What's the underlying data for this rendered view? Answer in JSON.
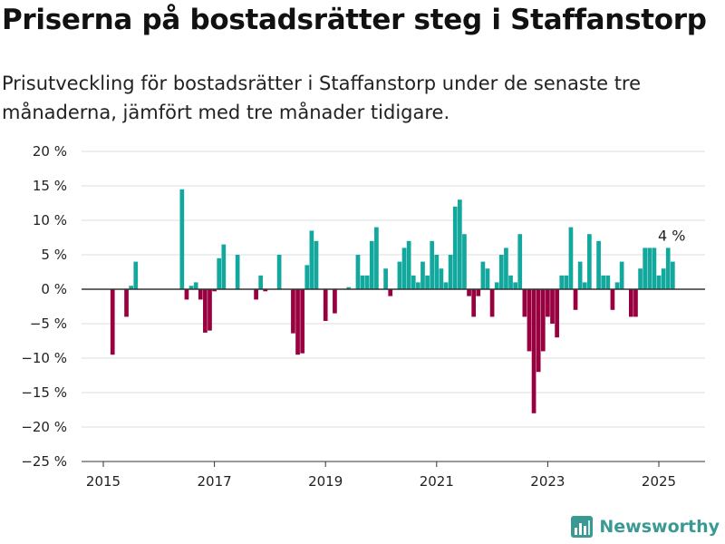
{
  "title": "Priserna på bostadsrätter steg i Staffanstorp",
  "subtitle": "Prisutveckling för bostadsrätter i Staffanstorp under de senaste tre månaderna, jämfört med tre månader tidigare.",
  "brand": {
    "name": "Newsworthy"
  },
  "colors": {
    "positive": "#13a89e",
    "negative": "#990040",
    "grid": "#dddddd",
    "axis": "#333333",
    "brand": "#3a9a93"
  },
  "chart_data": {
    "type": "bar",
    "title": "",
    "xlabel": "",
    "ylabel": "",
    "ylim": [
      -25,
      20
    ],
    "y_ticks": [
      20,
      15,
      10,
      5,
      0,
      -5,
      -10,
      -15,
      -20,
      -25
    ],
    "y_tick_labels": [
      "20 %",
      "15 %",
      "10 %",
      "5 %",
      "0 %",
      "−5 %",
      "−10 %",
      "−15 %",
      "−20 %",
      "−25 %"
    ],
    "x_ticks": [
      2015,
      2017,
      2019,
      2021,
      2023,
      2025
    ],
    "x_tick_labels": [
      "2015",
      "2017",
      "2019",
      "2021",
      "2023",
      "2025"
    ],
    "grid": true,
    "annotation": {
      "text": "4 %",
      "x": "2025-03",
      "value": 4
    },
    "dates": [
      "2015-01",
      "2015-02",
      "2015-03",
      "2015-04",
      "2015-05",
      "2015-06",
      "2015-07",
      "2015-08",
      "2015-09",
      "2015-10",
      "2015-11",
      "2015-12",
      "2016-01",
      "2016-02",
      "2016-03",
      "2016-04",
      "2016-05",
      "2016-06",
      "2016-07",
      "2016-08",
      "2016-09",
      "2016-10",
      "2016-11",
      "2016-12",
      "2017-01",
      "2017-02",
      "2017-03",
      "2017-04",
      "2017-05",
      "2017-06",
      "2017-07",
      "2017-08",
      "2017-09",
      "2017-10",
      "2017-11",
      "2017-12",
      "2018-01",
      "2018-02",
      "2018-03",
      "2018-04",
      "2018-05",
      "2018-06",
      "2018-07",
      "2018-08",
      "2018-09",
      "2018-10",
      "2018-11",
      "2018-12",
      "2019-01",
      "2019-02",
      "2019-03",
      "2019-04",
      "2019-05",
      "2019-06",
      "2019-07",
      "2019-08",
      "2019-09",
      "2019-10",
      "2019-11",
      "2019-12",
      "2020-01",
      "2020-02",
      "2020-03",
      "2020-04",
      "2020-05",
      "2020-06",
      "2020-07",
      "2020-08",
      "2020-09",
      "2020-10",
      "2020-11",
      "2020-12",
      "2021-01",
      "2021-02",
      "2021-03",
      "2021-04",
      "2021-05",
      "2021-06",
      "2021-07",
      "2021-08",
      "2021-09",
      "2021-10",
      "2021-11",
      "2021-12",
      "2022-01",
      "2022-02",
      "2022-03",
      "2022-04",
      "2022-05",
      "2022-06",
      "2022-07",
      "2022-08",
      "2022-09",
      "2022-10",
      "2022-11",
      "2022-12",
      "2023-01",
      "2023-02",
      "2023-03",
      "2023-04",
      "2023-05",
      "2023-06",
      "2023-07",
      "2023-08",
      "2023-09",
      "2023-10",
      "2023-11",
      "2023-12",
      "2024-01",
      "2024-02",
      "2024-03",
      "2024-04",
      "2024-05",
      "2024-06",
      "2024-07",
      "2024-08",
      "2024-09",
      "2024-10",
      "2024-11",
      "2024-12",
      "2025-01",
      "2025-02",
      "2025-03",
      "2025-04"
    ],
    "values": [
      null,
      null,
      -9.5,
      null,
      null,
      -4,
      0.5,
      4,
      null,
      null,
      null,
      null,
      null,
      null,
      null,
      null,
      null,
      14.5,
      -1.5,
      0.5,
      1,
      -1.5,
      -6.3,
      -6,
      -0.3,
      4.5,
      6.5,
      null,
      null,
      5,
      null,
      null,
      null,
      -1.5,
      2,
      -0.3,
      null,
      null,
      5,
      null,
      null,
      -6.4,
      -9.5,
      -9.3,
      3.5,
      8.5,
      7,
      null,
      -4.6,
      null,
      -3.5,
      null,
      null,
      0.3,
      null,
      5,
      2,
      2,
      7,
      9,
      null,
      3,
      -1,
      null,
      4,
      6,
      7,
      2,
      1,
      4,
      2,
      7,
      5,
      3,
      1,
      5,
      12,
      13,
      8,
      -1,
      -4,
      -1,
      4,
      3,
      -4,
      1,
      5,
      6,
      2,
      1,
      8,
      -4,
      -9,
      -18,
      -12,
      -9,
      -4,
      -5,
      -7,
      2,
      2,
      9,
      -3,
      4,
      1,
      8,
      null,
      7,
      2,
      2,
      -3,
      1,
      4,
      null,
      -4,
      -4,
      3,
      6,
      6,
      6,
      2,
      3,
      6,
      4
    ]
  }
}
